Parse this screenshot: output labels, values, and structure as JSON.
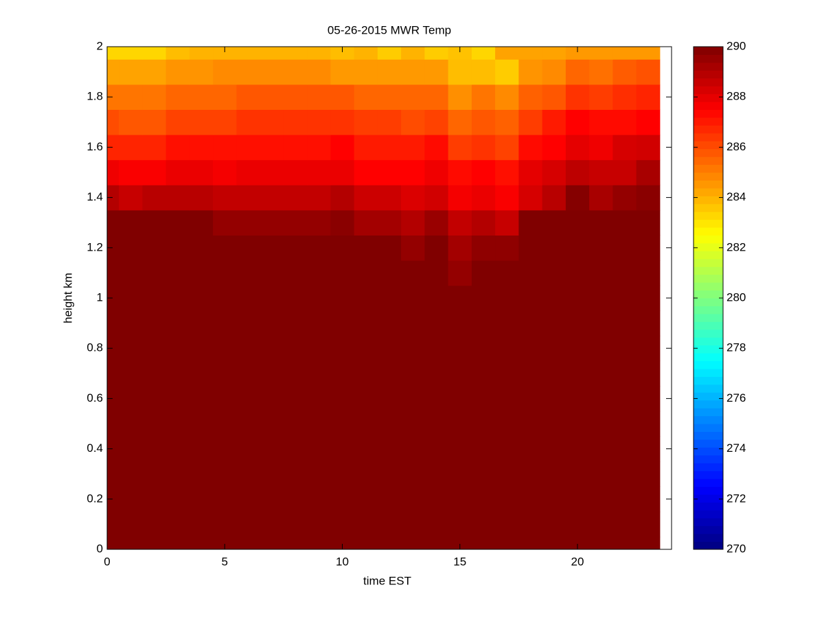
{
  "chart_data": {
    "type": "heatmap",
    "title": "05-26-2015 MWR Temp",
    "x_label": "time EST",
    "y_label": "height km",
    "colormap": "jet",
    "x": [
      0,
      1,
      2,
      3,
      4,
      5,
      6,
      7,
      8,
      9,
      10,
      11,
      12,
      13,
      14,
      15,
      16,
      17,
      18,
      19,
      20,
      21,
      22,
      23
    ],
    "y": [
      0,
      0.1,
      0.2,
      0.3,
      0.4,
      0.5,
      0.6,
      0.7,
      0.8,
      0.9,
      1.0,
      1.1,
      1.2,
      1.3,
      1.4,
      1.5,
      1.6,
      1.7,
      1.8,
      1.9,
      2.0
    ],
    "z": [
      [
        290,
        290,
        290,
        290,
        290,
        290,
        290,
        290,
        290,
        290,
        290,
        290,
        290,
        290,
        290,
        290,
        290,
        290,
        290,
        290,
        290,
        290,
        290,
        290
      ],
      [
        290,
        290,
        290,
        290,
        290,
        290,
        290,
        290,
        290,
        290,
        290,
        290,
        290,
        290,
        290,
        290,
        290,
        290,
        290,
        290,
        290,
        290,
        290,
        290
      ],
      [
        290,
        290,
        290,
        290,
        290,
        290,
        290,
        290,
        290,
        290,
        290,
        290,
        290,
        290,
        290,
        290,
        290,
        290,
        290,
        290,
        290,
        290,
        290,
        290
      ],
      [
        290,
        290,
        290,
        290,
        290,
        290,
        290,
        290,
        290,
        290,
        290,
        290,
        290,
        290,
        290,
        290,
        290,
        290,
        290,
        290,
        290,
        290,
        290,
        290
      ],
      [
        290,
        290,
        290,
        290,
        290,
        290,
        290,
        290,
        290,
        290,
        290,
        290,
        290,
        290,
        290,
        290,
        290,
        290,
        290,
        290,
        290,
        290,
        290,
        290
      ],
      [
        290,
        290,
        290,
        290,
        290,
        290,
        290,
        290,
        290,
        290,
        290,
        290,
        290,
        290,
        290,
        290,
        290,
        290,
        290,
        290,
        290,
        290,
        290,
        290
      ],
      [
        290,
        290,
        290,
        290,
        290,
        290,
        290,
        290,
        290,
        290,
        290,
        290,
        290,
        290,
        290,
        290,
        290,
        290,
        290,
        290,
        290,
        290,
        290,
        290
      ],
      [
        290,
        290,
        290,
        290,
        290,
        290,
        290,
        290,
        290,
        290,
        290,
        290,
        290,
        290,
        290,
        290,
        290,
        290,
        290,
        290,
        290,
        290,
        290,
        290
      ],
      [
        290,
        290,
        290,
        290,
        290,
        290,
        290,
        290,
        290,
        290,
        290,
        290,
        290,
        290,
        290,
        290,
        290,
        290,
        290,
        290,
        290,
        290,
        290,
        290
      ],
      [
        290,
        290,
        290,
        290,
        290,
        290,
        290,
        290,
        290,
        290,
        290,
        290,
        290,
        290,
        290,
        290,
        290,
        290,
        290,
        290,
        290,
        290,
        290,
        290
      ],
      [
        290,
        290,
        290,
        290,
        290,
        290,
        290,
        290,
        290,
        290,
        290,
        290,
        290,
        290,
        290,
        290,
        290,
        290,
        290,
        290,
        290,
        290,
        290,
        290
      ],
      [
        290,
        290,
        290,
        290,
        290,
        290,
        290,
        290,
        290,
        290,
        290,
        290,
        290,
        290,
        290,
        289.6,
        290,
        290,
        290,
        290,
        290,
        290,
        290,
        290
      ],
      [
        290,
        290,
        290,
        290,
        290,
        290,
        290,
        290,
        290,
        290,
        290,
        290,
        290,
        289.6,
        290,
        289.3,
        289.7,
        289.7,
        290,
        290,
        290,
        290,
        290,
        290
      ],
      [
        290,
        290,
        290,
        290,
        290,
        289.6,
        289.6,
        289.6,
        289.6,
        289.6,
        289.8,
        289.3,
        289.3,
        289.0,
        289.5,
        288.7,
        289.0,
        288.6,
        290,
        290,
        290,
        290,
        290,
        290
      ],
      [
        289.0,
        288.6,
        288.9,
        288.9,
        288.9,
        288.7,
        288.7,
        288.7,
        288.7,
        288.7,
        289.0,
        288.5,
        288.5,
        288.2,
        288.4,
        287.7,
        287.9,
        287.6,
        288.3,
        288.9,
        289.9,
        289.2,
        289.6,
        289.8
      ],
      [
        287.8,
        287.6,
        287.6,
        287.9,
        287.9,
        287.7,
        287.9,
        287.9,
        287.9,
        287.9,
        287.9,
        287.5,
        287.5,
        287.5,
        287.8,
        287.3,
        287.5,
        287.2,
        288.0,
        288.3,
        288.8,
        288.6,
        288.6,
        289.2
      ],
      [
        286.8,
        286.8,
        286.8,
        287.2,
        287.2,
        287.2,
        287.2,
        287.2,
        287.2,
        287.2,
        287.5,
        287.0,
        287.0,
        287.0,
        287.3,
        286.3,
        286.5,
        286.2,
        287.3,
        287.5,
        288.0,
        287.8,
        288.3,
        288.4
      ],
      [
        286.0,
        285.8,
        285.8,
        286.2,
        286.2,
        286.2,
        286.5,
        286.5,
        286.5,
        286.5,
        286.5,
        286.3,
        286.3,
        286.0,
        286.2,
        285.5,
        285.8,
        285.6,
        286.3,
        287.0,
        287.5,
        287.3,
        287.3,
        287.5
      ],
      [
        285.2,
        285.2,
        285.2,
        285.5,
        285.5,
        285.5,
        285.8,
        285.8,
        285.8,
        285.8,
        285.8,
        285.5,
        285.5,
        285.5,
        285.5,
        284.7,
        285.2,
        284.8,
        285.6,
        285.8,
        286.5,
        286.3,
        286.6,
        286.8
      ],
      [
        284.3,
        284.3,
        284.3,
        284.6,
        284.6,
        284.8,
        284.8,
        284.8,
        284.8,
        284.8,
        284.5,
        284.5,
        284.5,
        284.5,
        284.5,
        283.8,
        283.8,
        283.5,
        284.6,
        284.8,
        285.5,
        285.3,
        285.7,
        285.9
      ],
      [
        283.3,
        283.3,
        283.3,
        283.8,
        284.0,
        284.0,
        284.0,
        284.0,
        284.0,
        284.0,
        283.8,
        284.0,
        283.5,
        284.0,
        283.5,
        283.7,
        283.3,
        284.3,
        284.3,
        284.3,
        284.5,
        284.5,
        284.5,
        284.5
      ]
    ],
    "xlim": [
      0,
      24
    ],
    "xticks": [
      0,
      5,
      10,
      15,
      20
    ],
    "ylim": [
      0,
      2
    ],
    "yticks": [
      0,
      0.2,
      0.4,
      0.6,
      0.8,
      1,
      1.2,
      1.4,
      1.6,
      1.8,
      2
    ],
    "clim": [
      270,
      290
    ],
    "cticks": [
      270,
      272,
      274,
      276,
      278,
      280,
      282,
      284,
      286,
      288,
      290
    ]
  }
}
